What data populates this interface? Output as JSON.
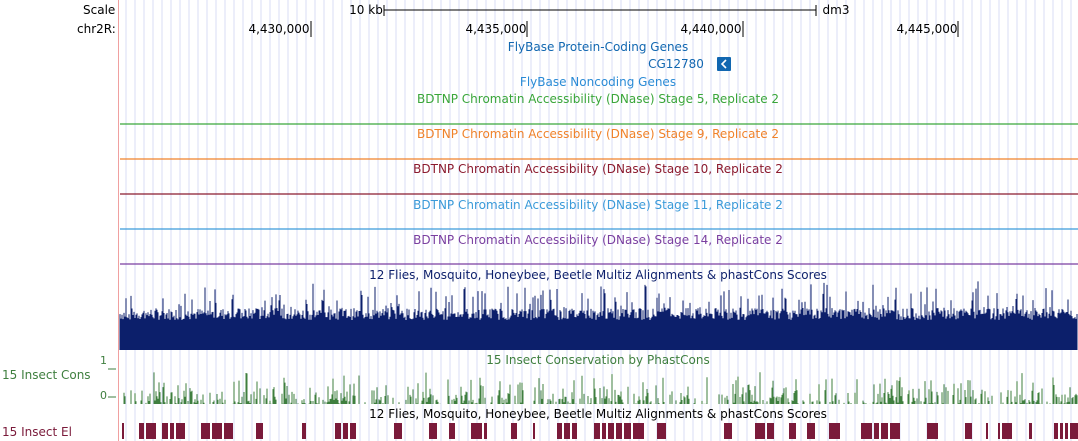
{
  "header": {
    "scale_label": "Scale",
    "scale_bar_label": "10 kb",
    "assembly": "dm3",
    "chrom_label": "chr2R:",
    "positions": [
      "4,430,000",
      "4,435,000",
      "4,440,000",
      "4,445,000"
    ]
  },
  "tracks": {
    "protein_coding": {
      "title": "FlyBase Protein-Coding Genes",
      "color": "#1167b1"
    },
    "gene": {
      "name": "CG12780",
      "strand_icon": "chevron-left-icon"
    },
    "noncoding": {
      "title": "FlyBase Noncoding Genes",
      "color": "#2a8bd6"
    },
    "dnase_stage5": {
      "title": "BDTNP Chromatin Accessibility (DNase) Stage 5, Replicate 2",
      "color": "#3aa63a"
    },
    "dnase_stage9": {
      "title": "BDTNP Chromatin Accessibility (DNase) Stage 9, Replicate 2",
      "color": "#f0822a"
    },
    "dnase_stage10": {
      "title": "BDTNP Chromatin Accessibility (DNase) Stage 10, Replicate 2",
      "color": "#8b1a2e"
    },
    "dnase_stage11": {
      "title": "BDTNP Chromatin Accessibility (DNase) Stage 11, Replicate 2",
      "color": "#3a9ad9"
    },
    "dnase_stage14": {
      "title": "BDTNP Chromatin Accessibility (DNase) Stage 14, Replicate 2",
      "color": "#7a3fa0"
    },
    "multiz": {
      "title": "12 Flies, Mosquito, Honeybee, Beetle Multiz Alignments & phastCons Scores",
      "color": "#0c1f6b"
    },
    "phastcons": {
      "title": "15 Insect Conservation by PhastCons",
      "side_label": "15 Insect Cons",
      "y_max": "1",
      "y_min": "0",
      "color": "#3f7f3f"
    },
    "elements": {
      "title": "12 Flies, Mosquito, Honeybee, Beetle Multiz Alignments & phastCons Scores",
      "side_label": "15 Insect El",
      "color": "#7a1a3a"
    }
  }
}
